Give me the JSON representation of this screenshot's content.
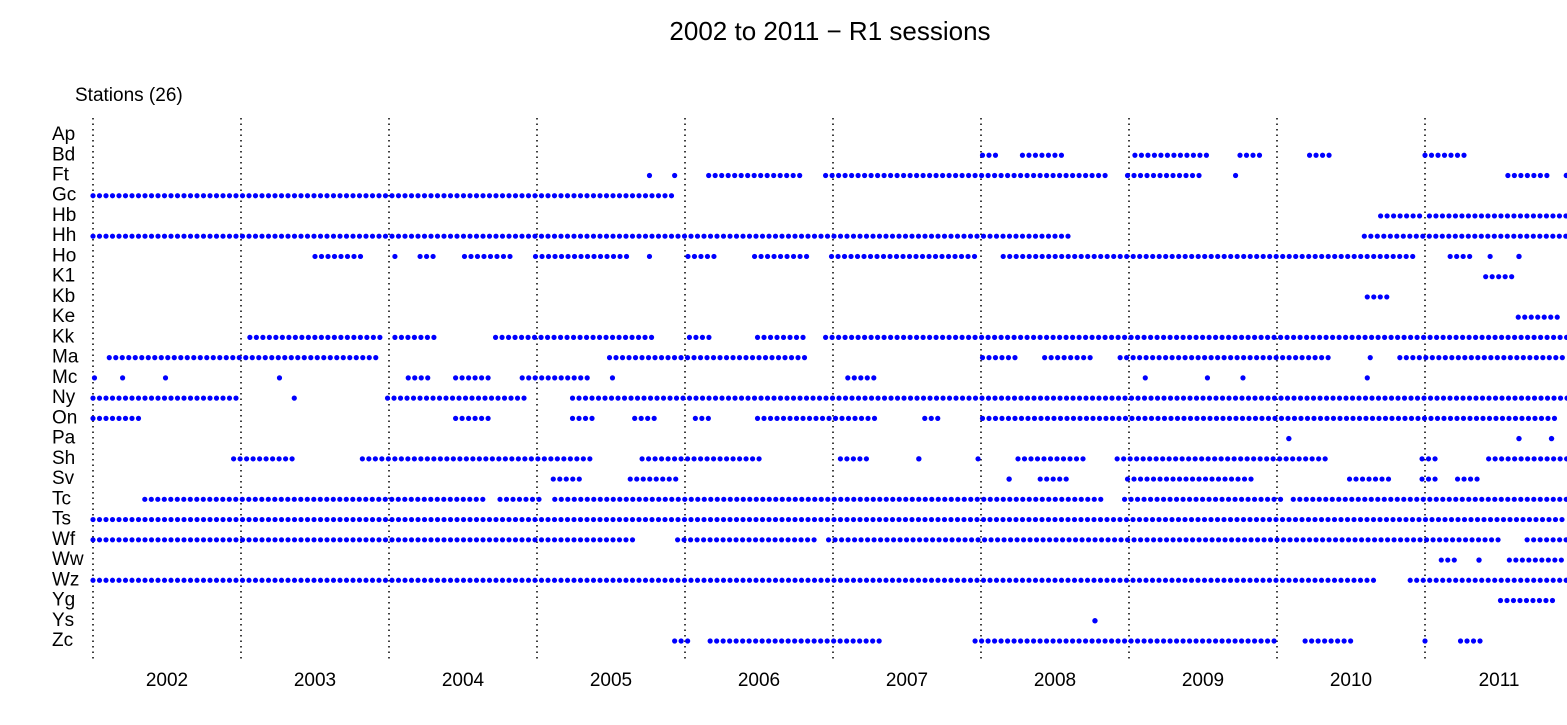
{
  "chart_data": {
    "type": "timeline",
    "title": "2002 to 2011 − R1 sessions",
    "y_label": "Stations (26)",
    "color": "#0000ff",
    "xlim": [
      2002,
      2012
    ],
    "xticks": [
      {
        "value": 2002.5,
        "label": "2002"
      },
      {
        "value": 2003.5,
        "label": "2003"
      },
      {
        "value": 2004.5,
        "label": "2004"
      },
      {
        "value": 2005.5,
        "label": "2005"
      },
      {
        "value": 2006.5,
        "label": "2006"
      },
      {
        "value": 2007.5,
        "label": "2007"
      },
      {
        "value": 2008.5,
        "label": "2008"
      },
      {
        "value": 2009.5,
        "label": "2009"
      },
      {
        "value": 2010.5,
        "label": "2010"
      },
      {
        "value": 2011.5,
        "label": "2011"
      }
    ],
    "xgrid": [
      2002,
      2003,
      2004,
      2005,
      2006,
      2007,
      2008,
      2009,
      2010,
      2011
    ],
    "stations": [
      {
        "name": "Ap",
        "sessions": []
      },
      {
        "name": "Bd",
        "sessions": [
          [
            2008.01,
            2008.11
          ],
          [
            2008.28,
            2008.57
          ],
          [
            2009.04,
            2009.55
          ],
          [
            2009.75,
            2009.92
          ],
          [
            2010.22,
            2010.39
          ],
          [
            2011.0,
            2011.27
          ]
        ]
      },
      {
        "name": "Ft",
        "sessions": [
          [
            2005.76,
            2005.8
          ],
          [
            2005.93,
            2005.97
          ],
          [
            2006.16,
            2006.78
          ],
          [
            2006.95,
            2008.84
          ],
          [
            2008.99,
            2009.51
          ],
          [
            2009.72,
            2009.75
          ],
          [
            2011.56,
            2011.85
          ],
          [
            2011.95,
            2011.96
          ]
        ]
      },
      {
        "name": "Gc",
        "sessions": [
          [
            2002.0,
            2005.95
          ]
        ]
      },
      {
        "name": "Hb",
        "sessions": [
          [
            2010.7,
            2010.97
          ],
          [
            2011.03,
            2011.96
          ]
        ]
      },
      {
        "name": "Hh",
        "sessions": [
          [
            2002.0,
            2008.62
          ],
          [
            2010.59,
            2011.96
          ]
        ]
      },
      {
        "name": "Ho",
        "sessions": [
          [
            2003.5,
            2003.84
          ],
          [
            2004.04,
            2004.07
          ],
          [
            2004.21,
            2004.34
          ],
          [
            2004.51,
            2004.82
          ],
          [
            2004.99,
            2005.63
          ],
          [
            2005.76,
            2005.8
          ],
          [
            2006.02,
            2006.2
          ],
          [
            2006.47,
            2006.84
          ],
          [
            2006.99,
            2007.96
          ],
          [
            2008.15,
            2010.93
          ],
          [
            2011.17,
            2011.34
          ],
          [
            2011.44,
            2011.47
          ],
          [
            2011.63,
            2011.64
          ]
        ]
      },
      {
        "name": "K1",
        "sessions": [
          [
            2011.41,
            2011.59
          ]
        ]
      },
      {
        "name": "Kb",
        "sessions": [
          [
            2010.61,
            2010.75
          ]
        ]
      },
      {
        "name": "Ke",
        "sessions": [
          [
            2011.63,
            2011.91
          ]
        ]
      },
      {
        "name": "Kk",
        "sessions": [
          [
            2003.06,
            2003.94
          ],
          [
            2004.04,
            2004.34
          ],
          [
            2004.72,
            2005.8
          ],
          [
            2006.03,
            2006.2
          ],
          [
            2006.49,
            2006.84
          ],
          [
            2006.95,
            2011.96
          ]
        ]
      },
      {
        "name": "Ma",
        "sessions": [
          [
            2002.11,
            2003.94
          ],
          [
            2005.49,
            2006.84
          ],
          [
            2008.01,
            2008.26
          ],
          [
            2008.43,
            2008.77
          ],
          [
            2008.94,
            2010.36
          ],
          [
            2010.63,
            2010.66
          ],
          [
            2010.83,
            2011.96
          ]
        ]
      },
      {
        "name": "Mc",
        "sessions": [
          [
            2002.01,
            2002.05
          ],
          [
            2002.2,
            2002.24
          ],
          [
            2002.49,
            2002.52
          ],
          [
            2003.26,
            2003.3
          ],
          [
            2004.13,
            2004.29
          ],
          [
            2004.45,
            2004.68
          ],
          [
            2004.9,
            2005.34
          ],
          [
            2005.51,
            2005.54
          ],
          [
            2007.1,
            2007.3
          ],
          [
            2009.11,
            2009.14
          ],
          [
            2009.53,
            2009.57
          ],
          [
            2009.77,
            2009.8
          ],
          [
            2010.61,
            2010.65
          ]
        ]
      },
      {
        "name": "Ny",
        "sessions": [
          [
            2002.0,
            2002.97
          ],
          [
            2003.36,
            2003.4
          ],
          [
            2003.99,
            2004.95
          ],
          [
            2005.24,
            2011.96
          ]
        ]
      },
      {
        "name": "On",
        "sessions": [
          [
            2002.0,
            2002.35
          ],
          [
            2004.45,
            2004.68
          ],
          [
            2005.24,
            2005.41
          ],
          [
            2005.66,
            2005.83
          ],
          [
            2006.07,
            2006.2
          ],
          [
            2006.49,
            2007.32
          ],
          [
            2007.62,
            2007.72
          ],
          [
            2008.01,
            2011.91
          ]
        ]
      },
      {
        "name": "Pa",
        "sessions": [
          [
            2010.07,
            2010.09
          ],
          [
            2011.63,
            2011.64
          ],
          [
            2011.85,
            2011.86
          ]
        ]
      },
      {
        "name": "Sh",
        "sessions": [
          [
            2002.95,
            2003.35
          ],
          [
            2003.82,
            2005.36
          ],
          [
            2005.71,
            2006.54
          ],
          [
            2007.05,
            2007.24
          ],
          [
            2007.57,
            2007.59
          ],
          [
            2007.98,
            2008.01
          ],
          [
            2008.25,
            2008.72
          ],
          [
            2008.92,
            2010.36
          ],
          [
            2010.98,
            2011.1
          ],
          [
            2011.43,
            2011.96
          ]
        ]
      },
      {
        "name": "Sv",
        "sessions": [
          [
            2005.11,
            2005.31
          ],
          [
            2005.63,
            2005.95
          ],
          [
            2008.18,
            2008.2
          ],
          [
            2008.4,
            2008.61
          ],
          [
            2008.99,
            2009.85
          ],
          [
            2010.49,
            2010.76
          ],
          [
            2010.98,
            2011.1
          ],
          [
            2011.22,
            2011.36
          ]
        ]
      },
      {
        "name": "Tc",
        "sessions": [
          [
            2002.35,
            2004.65
          ],
          [
            2004.75,
            2005.05
          ],
          [
            2005.12,
            2008.84
          ],
          [
            2008.97,
            2010.04
          ],
          [
            2010.11,
            2011.96
          ]
        ]
      },
      {
        "name": "Ts",
        "sessions": [
          [
            2002.0,
            2011.96
          ]
        ]
      },
      {
        "name": "Wf",
        "sessions": [
          [
            2002.0,
            2005.68
          ],
          [
            2005.95,
            2006.9
          ],
          [
            2006.97,
            2011.52
          ],
          [
            2011.69,
            2011.96
          ]
        ]
      },
      {
        "name": "Ww",
        "sessions": [
          [
            2011.11,
            2011.22
          ],
          [
            2011.36,
            2011.37
          ],
          [
            2011.57,
            2011.96
          ]
        ]
      },
      {
        "name": "Wz",
        "sessions": [
          [
            2002.0,
            2010.66
          ],
          [
            2010.9,
            2011.96
          ]
        ]
      },
      {
        "name": "Yg",
        "sessions": [
          [
            2011.51,
            2011.9
          ]
        ]
      },
      {
        "name": "Ys",
        "sessions": [
          [
            2008.76,
            2008.78
          ]
        ]
      },
      {
        "name": "Zc",
        "sessions": [
          [
            2005.93,
            2006.05
          ],
          [
            2006.17,
            2007.33
          ],
          [
            2007.96,
            2009.99
          ],
          [
            2010.19,
            2010.53
          ],
          [
            2011.0,
            2011.03
          ],
          [
            2011.24,
            2011.41
          ]
        ]
      }
    ]
  }
}
